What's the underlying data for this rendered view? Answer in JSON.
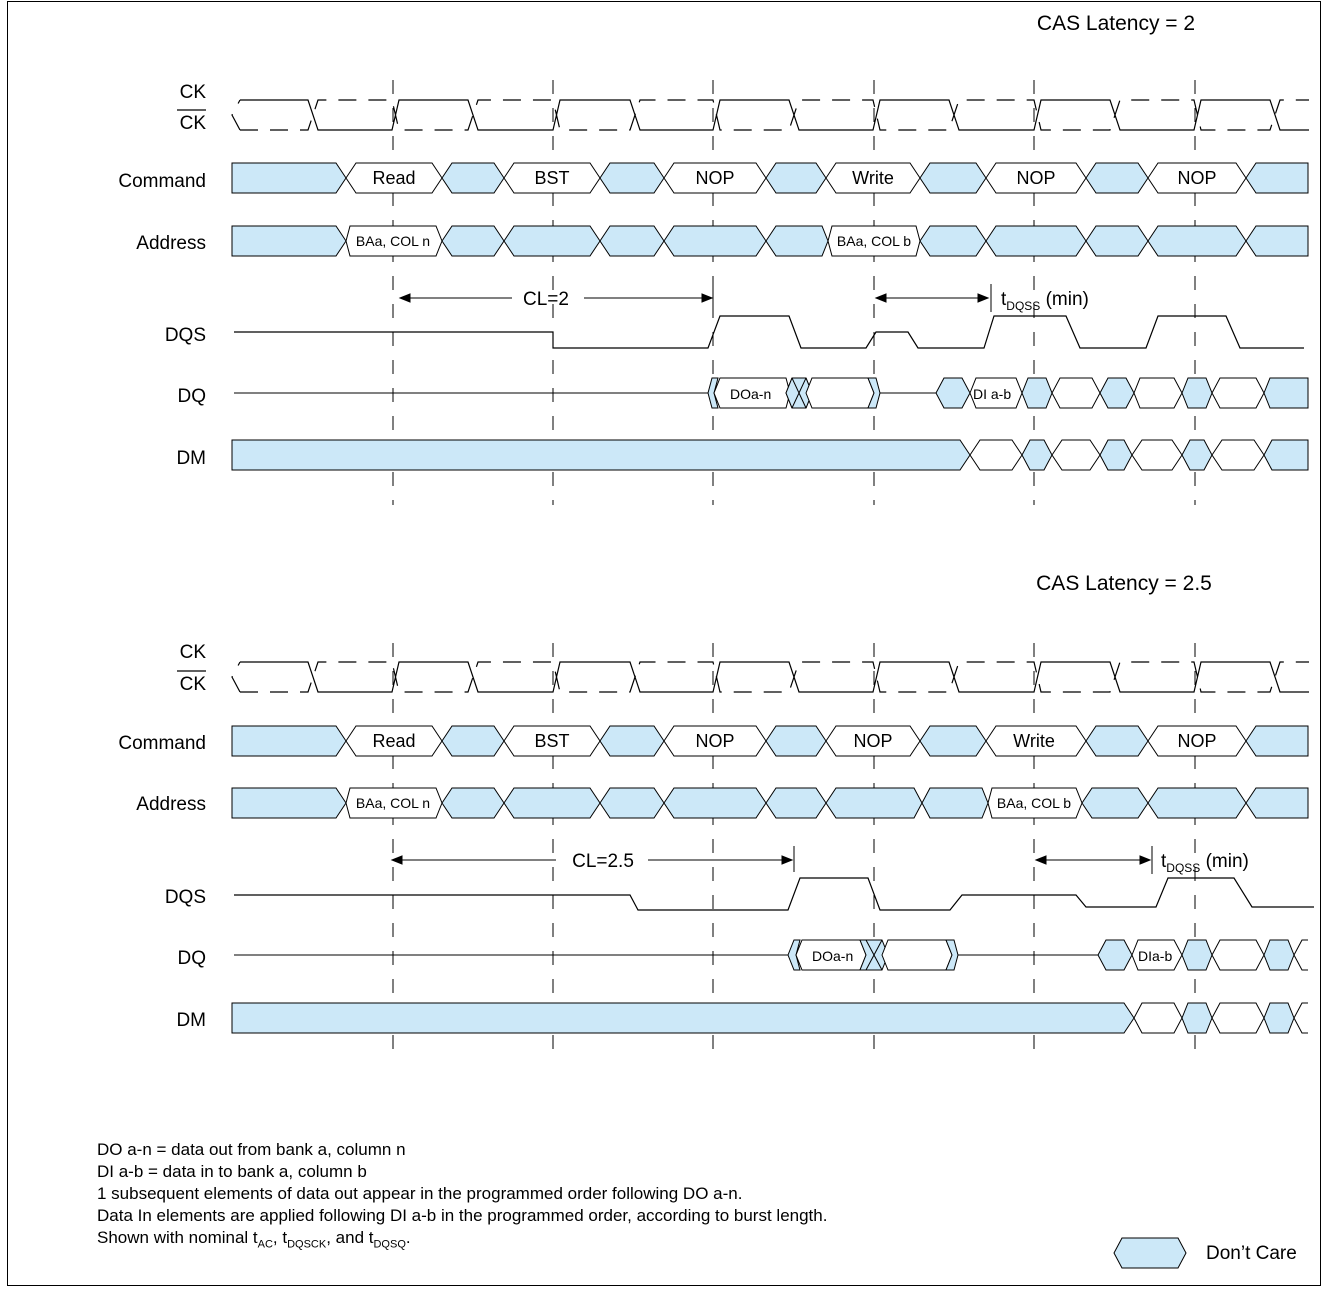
{
  "panels": [
    {
      "title": "CAS Latency = 2",
      "signal_labels": {
        "ck": "CK",
        "ck_bar": "CK",
        "command": "Command",
        "address": "Address",
        "dqs": "DQS",
        "dq": "DQ",
        "dm": "DM"
      },
      "commands": [
        "Read",
        "BST",
        "NOP",
        "Write",
        "NOP",
        "NOP"
      ],
      "addresses": [
        "BAa, COL n",
        "BAa, COL b"
      ],
      "cl_label": "CL=2",
      "tdqss_main": "t",
      "tdqss_sub": "DQSS",
      "tdqss_tail": " (min)",
      "dq_out": "DOa-n",
      "dq_in": "DI a-b"
    },
    {
      "title": "CAS Latency = 2.5",
      "signal_labels": {
        "ck": "CK",
        "ck_bar": "CK",
        "command": "Command",
        "address": "Address",
        "dqs": "DQS",
        "dq": "DQ",
        "dm": "DM"
      },
      "commands": [
        "Read",
        "BST",
        "NOP",
        "NOP",
        "Write",
        "NOP"
      ],
      "addresses": [
        "BAa, COL n",
        "BAa, COL b"
      ],
      "cl_label": "CL=2.5",
      "tdqss_main": "t",
      "tdqss_sub": "DQSS",
      "tdqss_tail": " (min)",
      "dq_out": "DOa-n",
      "dq_in": "DIa-b"
    }
  ],
  "notes": {
    "line1": "DO a-n = data out from bank a, column n",
    "line2": "DI a-b = data in to bank a, column b",
    "line3": "1 subsequent elements of data out appear in the programmed order following DO a-n.",
    "line4": "Data In elements are applied following DI a-b in the programmed order, according to burst length.",
    "line5_a": "Shown with nominal t",
    "line5_s1": "AC",
    "line5_b": ", t",
    "line5_s2": "DQSCK",
    "line5_c": ", and t",
    "line5_s3": "DQSQ",
    "line5_d": "."
  },
  "legend": {
    "dont_care": "Don’t Care"
  },
  "colors": {
    "dont_care_fill": "#cce8f8",
    "line": "#000000"
  }
}
